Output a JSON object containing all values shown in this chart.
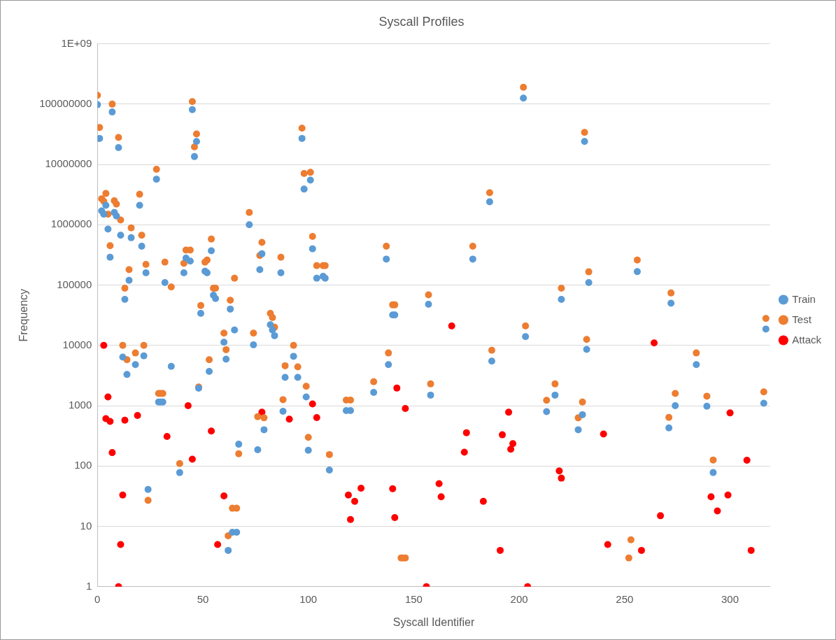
{
  "chart_data": {
    "type": "scatter",
    "title": "Syscall Profiles",
    "xlabel": "Syscall Identifier",
    "ylabel": "Frequency",
    "log": "y",
    "grid": "y",
    "legend": "right",
    "marker": "circle",
    "xlim": [
      0,
      319
    ],
    "xticks": [
      0,
      50,
      100,
      150,
      200,
      250,
      300
    ],
    "ylim": [
      1,
      1000000000
    ],
    "yticks": [
      1,
      10,
      100,
      1000,
      10000,
      100000,
      1000000,
      10000000,
      100000000,
      {
        "value": 1000000000,
        "label": "1E+09"
      }
    ],
    "series": [
      {
        "name": "Train",
        "color": "#5b9bd5",
        "x": [
          0,
          1,
          2,
          3,
          4,
          5,
          6,
          7,
          8,
          9,
          10,
          11,
          12,
          13,
          14,
          15,
          16,
          18,
          20,
          21,
          22,
          23,
          24,
          28,
          29,
          30,
          31,
          32,
          35,
          39,
          41,
          42,
          44,
          45,
          46,
          47,
          48,
          49,
          51,
          52,
          53,
          54,
          55,
          56,
          60,
          61,
          62,
          63,
          64,
          65,
          66,
          67,
          72,
          74,
          76,
          77,
          78,
          79,
          82,
          83,
          84,
          87,
          88,
          89,
          93,
          95,
          97,
          98,
          99,
          100,
          101,
          102,
          104,
          107,
          108,
          110,
          118,
          120,
          131,
          137,
          138,
          140,
          141,
          157,
          158,
          178,
          186,
          187,
          202,
          203,
          213,
          217,
          220,
          228,
          230,
          231,
          232,
          233,
          256,
          271,
          272,
          274,
          284,
          289,
          292,
          316,
          317
        ],
        "values": [
          98000000,
          27000000,
          1700000,
          1500000,
          2100000,
          850000,
          290000,
          74000000,
          1600000,
          1400000,
          19000000,
          670000,
          6400,
          58000,
          3300,
          120000,
          610000,
          4800,
          2100000,
          440000,
          6700,
          160000,
          41,
          5700000,
          1150,
          1150,
          1150,
          110000,
          4500,
          78,
          160000,
          280000,
          250000,
          81000000,
          13500000,
          24000000,
          1950,
          34000,
          170000,
          160000,
          3700,
          370000,
          68000,
          60000,
          11300,
          5900,
          4,
          40000,
          8,
          18000,
          8,
          230,
          1000000,
          10200,
          186,
          180000,
          330000,
          400,
          22000,
          18000,
          14500,
          160000,
          810,
          2950,
          6600,
          2950,
          27000000,
          3900000,
          1400,
          183,
          5500000,
          400000,
          130000,
          140000,
          130000,
          86,
          830,
          830,
          1660,
          270000,
          4800,
          32000,
          32000,
          48000,
          1500,
          270000,
          2400000,
          5500,
          126000000,
          14000,
          800,
          1500,
          58000,
          400,
          710,
          24000000,
          8600,
          110000,
          167000,
          430,
          50000,
          1000,
          4800,
          980,
          78,
          1100,
          18700
        ]
      },
      {
        "name": "Test",
        "color": "#ed7d31",
        "x": [
          0,
          1,
          2,
          3,
          4,
          5,
          6,
          7,
          8,
          9,
          10,
          11,
          12,
          13,
          14,
          15,
          16,
          18,
          20,
          21,
          22,
          23,
          24,
          28,
          29,
          30,
          31,
          32,
          35,
          39,
          41,
          42,
          44,
          45,
          46,
          47,
          48,
          49,
          51,
          52,
          53,
          54,
          55,
          56,
          60,
          61,
          62,
          63,
          64,
          65,
          66,
          67,
          72,
          74,
          76,
          77,
          78,
          79,
          82,
          83,
          84,
          87,
          88,
          89,
          93,
          95,
          97,
          98,
          99,
          100,
          101,
          102,
          104,
          107,
          108,
          110,
          118,
          120,
          131,
          137,
          138,
          140,
          141,
          144,
          145,
          146,
          157,
          158,
          178,
          186,
          187,
          202,
          203,
          213,
          217,
          220,
          228,
          230,
          231,
          232,
          233,
          252,
          253,
          256,
          271,
          272,
          274,
          284,
          289,
          292,
          316,
          317
        ],
        "values": [
          140000000,
          41000000,
          2700000,
          2450000,
          3300000,
          1500000,
          450000,
          100000000,
          2500000,
          2200000,
          28000000,
          1200000,
          10000,
          89000,
          5800,
          180000,
          890000,
          7500,
          3200000,
          670000,
          10000,
          220000,
          27,
          8300000,
          1600,
          1600,
          1600,
          240000,
          93000,
          110,
          230000,
          380000,
          380000,
          110000000,
          19500000,
          32000000,
          2050,
          46000,
          240000,
          260000,
          5800,
          580000,
          89000,
          89000,
          16000,
          8500,
          7,
          56000,
          20,
          130000,
          20,
          160,
          1600000,
          16000,
          660,
          310000,
          510000,
          630,
          34000,
          29000,
          20000,
          290000,
          1260,
          4600,
          10000,
          4400,
          40000000,
          7100000,
          2100,
          300,
          7400000,
          640000,
          210000,
          210000,
          210000,
          155,
          1240,
          1240,
          2500,
          440000,
          7500,
          47000,
          47000,
          3,
          3,
          3,
          69000,
          2300,
          440000,
          3400000,
          8300,
          190000000,
          21000,
          1230,
          2300,
          89000,
          630,
          1150,
          34000000,
          12600,
          166000,
          3,
          6,
          260000,
          640,
          74000,
          1600,
          7500,
          1440,
          126,
          1700,
          28000
        ]
      },
      {
        "name": "Attack",
        "color": "#ff0000",
        "x": [
          3,
          4,
          5,
          6,
          7,
          10,
          11,
          12,
          13,
          19,
          33,
          43,
          45,
          54,
          57,
          60,
          78,
          91,
          102,
          104,
          119,
          120,
          122,
          125,
          140,
          141,
          142,
          146,
          156,
          162,
          163,
          168,
          174,
          175,
          183,
          191,
          192,
          195,
          196,
          197,
          204,
          219,
          220,
          240,
          242,
          258,
          264,
          267,
          291,
          294,
          299,
          300,
          308,
          310
        ],
        "values": [
          10000,
          610,
          1400,
          550,
          167,
          1,
          5,
          33,
          575,
          690,
          310,
          1000,
          130,
          380,
          5,
          32,
          780,
          600,
          1070,
          635,
          33,
          13,
          26,
          43,
          42,
          14,
          1960,
          900,
          1,
          51,
          31,
          21000,
          170,
          357,
          26,
          4,
          330,
          780,
          190,
          235,
          1,
          83,
          63,
          340,
          5,
          4,
          11000,
          15,
          31,
          18,
          33,
          760,
          125,
          4
        ]
      }
    ]
  }
}
